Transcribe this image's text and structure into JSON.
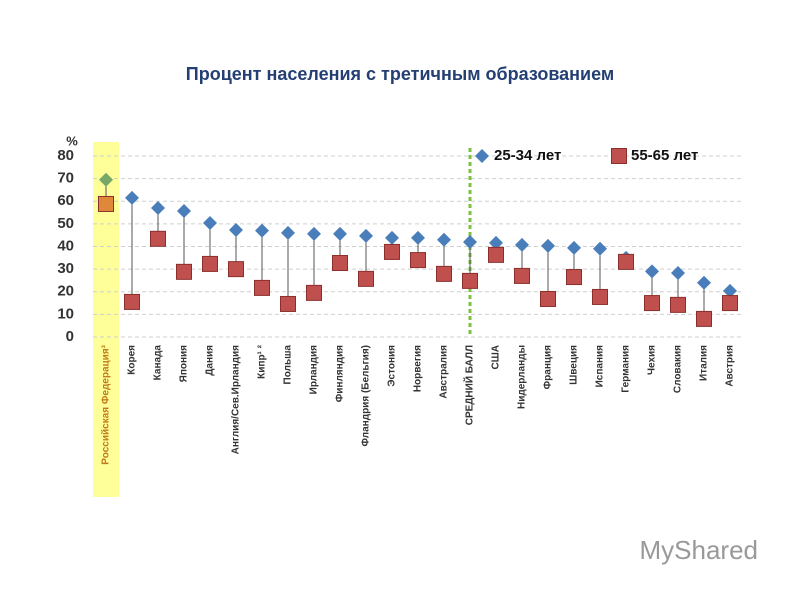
{
  "chart_data": {
    "type": "dot-range",
    "title": "Процент населения с третичным образованием",
    "y_unit": "%",
    "categories": [
      "Российская Федерация³",
      "Корея",
      "Канада",
      "Япония",
      "Дания",
      "Англия/Сев.Ирландия",
      "Кипр¹ ²",
      "Польша",
      "Ирландия",
      "Финляндия",
      "Фландрия (Бельгия)",
      "Эстония",
      "Норвегия",
      "Австралия",
      "СРЕДНИЙ БАЛЛ",
      "США",
      "Нидерланды",
      "Франция",
      "Швеция",
      "Испания",
      "Германия",
      "Чехия",
      "Словакия",
      "Италия",
      "Австрия"
    ],
    "series": [
      {
        "name": "25-34 лет",
        "color": "#4a7ebb",
        "marker": "diamond",
        "values": [
          69.5,
          61.5,
          57,
          55.7,
          50.4,
          47.3,
          47,
          46,
          45.6,
          45.6,
          44.7,
          43.8,
          43.8,
          43,
          42,
          41.6,
          40.7,
          40.3,
          39.4,
          39,
          35,
          29,
          28.3,
          24,
          20.4
        ]
      },
      {
        "name": "55-65 лет",
        "color": "#c0504d",
        "marker": "square",
        "values": [
          58.8,
          15.5,
          43.4,
          28.8,
          32.3,
          30,
          21.7,
          14.6,
          19.5,
          32.7,
          25.7,
          37.6,
          34,
          27.9,
          24.8,
          36.3,
          27,
          16.8,
          26.5,
          17.7,
          33.2,
          15,
          14.2,
          8,
          15
        ]
      }
    ],
    "ylim": [
      0,
      80
    ],
    "yticks": [
      0,
      10,
      20,
      30,
      40,
      50,
      60,
      70,
      80
    ],
    "grid": true,
    "highlight": {
      "category_index": 0,
      "band_color": "#ffff99",
      "label_color": "#c07a1a",
      "marker_colors": [
        "#77a868",
        "#e0883a"
      ]
    },
    "reference_line": {
      "category_index": 14,
      "color": "#7ac142"
    },
    "watermark": "MyShared"
  }
}
